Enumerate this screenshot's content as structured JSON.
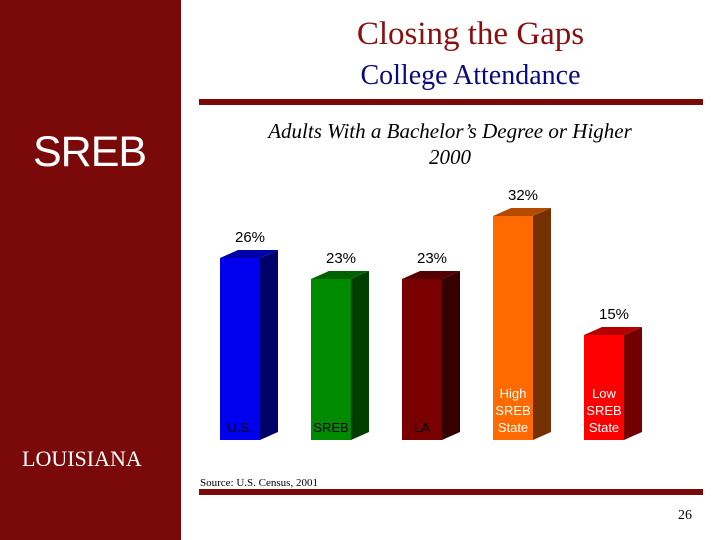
{
  "slide": {
    "logo": "SREB",
    "state": "LOUISIANA",
    "title": "Closing the Gaps",
    "subtitle": "College Attendance",
    "source": "Source: U.S. Census, 2001",
    "page_number": "26"
  },
  "chart_data": {
    "type": "bar",
    "title": "Adults With a Bachelor’s Degree or Higher",
    "subtitle": "2000",
    "categories": [
      [
        "U.S."
      ],
      [
        "SREB"
      ],
      [
        "LA"
      ],
      [
        "High",
        "SREB",
        "State"
      ],
      [
        "Low",
        "SREB",
        "State"
      ]
    ],
    "values": [
      26,
      23,
      23,
      32,
      15
    ],
    "value_labels": [
      "26%",
      "23%",
      "23%",
      "32%",
      "15%"
    ],
    "colors": [
      "#0000ee",
      "#008a00",
      "#7a0000",
      "#ff6a00",
      "#ff0000"
    ],
    "ylim": [
      0,
      35
    ],
    "grid": false,
    "legend": "none"
  }
}
